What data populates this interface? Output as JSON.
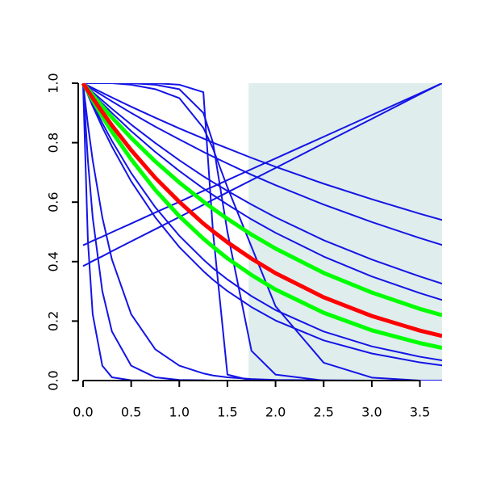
{
  "chart_data": {
    "type": "line",
    "x": [
      0,
      0.05,
      0.1,
      0.2,
      0.3,
      0.5,
      0.75,
      1.0,
      1.25,
      1.35,
      1.5,
      1.75,
      2.0,
      2.5,
      3.0,
      3.5,
      3.73
    ],
    "xlim": [
      -0.05,
      3.73
    ],
    "ylim": [
      0,
      1
    ],
    "xticks": [
      {
        "value": 0,
        "label": "0.0"
      },
      {
        "value": 0.5,
        "label": "0.5"
      },
      {
        "value": 1,
        "label": "1.0"
      },
      {
        "value": 1.5,
        "label": "1.5"
      },
      {
        "value": 2,
        "label": "2.0"
      },
      {
        "value": 2.5,
        "label": "2.5"
      },
      {
        "value": 3,
        "label": "3.0"
      },
      {
        "value": 3.5,
        "label": "3.5"
      }
    ],
    "yticks": [
      {
        "value": 0,
        "label": "0.0"
      },
      {
        "value": 0.2,
        "label": "0.2"
      },
      {
        "value": 0.4,
        "label": "0.4"
      },
      {
        "value": 0.6,
        "label": "0.6"
      },
      {
        "value": 0.8,
        "label": "0.8"
      },
      {
        "value": 1,
        "label": "1.0"
      }
    ],
    "shaded_xrange": [
      1.72,
      3.73
    ],
    "shade_color": "#dfeded",
    "series": [
      {
        "color": "#1414e6",
        "width": 2,
        "values": [
          1,
          0.992,
          0.984,
          0.968,
          0.952,
          0.921,
          0.884,
          0.848,
          0.814,
          0.8,
          0.781,
          0.749,
          0.719,
          0.662,
          0.61,
          0.561,
          0.54
        ]
      },
      {
        "color": "#1414e6",
        "width": 2,
        "values": [
          1,
          0.99,
          0.979,
          0.959,
          0.939,
          0.9,
          0.854,
          0.811,
          0.769,
          0.753,
          0.73,
          0.692,
          0.657,
          0.592,
          0.533,
          0.479,
          0.456
        ]
      },
      {
        "color": "#1414e6",
        "width": 2,
        "values": [
          1,
          0.985,
          0.97,
          0.942,
          0.914,
          0.861,
          0.799,
          0.741,
          0.687,
          0.667,
          0.638,
          0.592,
          0.549,
          0.472,
          0.407,
          0.35,
          0.326
        ]
      },
      {
        "color": "#1414e6",
        "width": 2,
        "values": [
          1,
          0.983,
          0.966,
          0.932,
          0.9,
          0.839,
          0.769,
          0.705,
          0.646,
          0.624,
          0.592,
          0.542,
          0.497,
          0.417,
          0.35,
          0.294,
          0.271
        ]
      },
      {
        "color": "#1414e6",
        "width": 2,
        "values": [
          1,
          0.965,
          0.93,
          0.866,
          0.806,
          0.698,
          0.583,
          0.487,
          0.407,
          0.378,
          0.34,
          0.284,
          0.237,
          0.165,
          0.115,
          0.08,
          0.068
        ]
      },
      {
        "color": "#1414e6",
        "width": 2,
        "values": [
          1,
          0.961,
          0.923,
          0.852,
          0.787,
          0.67,
          0.549,
          0.449,
          0.368,
          0.339,
          0.301,
          0.247,
          0.202,
          0.135,
          0.091,
          0.061,
          0.051
        ]
      },
      {
        "color": "#1414e6",
        "width": 2,
        "values": [
          1,
          0.861,
          0.741,
          0.549,
          0.407,
          0.223,
          0.105,
          0.05,
          0.024,
          0.017,
          0.011,
          0.005,
          0.002,
          0.001,
          0,
          0,
          0
        ]
      },
      {
        "color": "#1414e6",
        "width": 2,
        "values": [
          1,
          0.741,
          0.549,
          0.301,
          0.165,
          0.05,
          0.011,
          0.002,
          0.001,
          0,
          0,
          0,
          0,
          0,
          0,
          0,
          0
        ]
      },
      {
        "color": "#1414e6",
        "width": 2,
        "values": [
          1,
          0.472,
          0.223,
          0.05,
          0.011,
          0.001,
          0,
          0,
          0,
          0,
          0,
          0,
          0,
          0,
          0,
          0,
          0
        ]
      },
      {
        "color": "#1414e6",
        "width": 2,
        "values": [
          1,
          1,
          1,
          1,
          1,
          1,
          1,
          0.995,
          0.97,
          0.5,
          0.02,
          0,
          0,
          0,
          0,
          0,
          0
        ]
      },
      {
        "color": "#1414e6",
        "width": 2,
        "values": [
          1,
          1,
          1,
          1,
          1,
          1,
          0.995,
          0.98,
          0.9,
          0.8,
          0.5,
          0.1,
          0.02,
          0,
          0,
          0,
          0
        ]
      },
      {
        "color": "#1414e6",
        "width": 2,
        "values": [
          1,
          1,
          1,
          1,
          1,
          0.995,
          0.98,
          0.95,
          0.85,
          0.78,
          0.65,
          0.45,
          0.25,
          0.06,
          0.01,
          0,
          0
        ]
      },
      {
        "color": "#1414e6",
        "width": 2,
        "values": [
          0.385,
          0.393,
          0.402,
          0.418,
          0.435,
          0.468,
          0.509,
          0.55,
          0.591,
          0.608,
          0.633,
          0.674,
          0.715,
          0.798,
          0.88,
          0.963,
          1
        ]
      },
      {
        "color": "#1414e6",
        "width": 2,
        "values": [
          0.455,
          0.462,
          0.47,
          0.484,
          0.499,
          0.528,
          0.565,
          0.601,
          0.638,
          0.652,
          0.674,
          0.711,
          0.747,
          0.82,
          0.893,
          0.966,
          1
        ]
      },
      {
        "color": "#00ff00",
        "width": 5,
        "values": [
          1,
          0.98,
          0.96,
          0.922,
          0.885,
          0.816,
          0.737,
          0.666,
          0.602,
          0.578,
          0.544,
          0.491,
          0.444,
          0.362,
          0.296,
          0.241,
          0.22
        ]
      },
      {
        "color": "#00ff00",
        "width": 5,
        "values": [
          1,
          0.971,
          0.943,
          0.888,
          0.837,
          0.744,
          0.641,
          0.553,
          0.477,
          0.45,
          0.411,
          0.355,
          0.306,
          0.228,
          0.169,
          0.126,
          0.11
        ]
      },
      {
        "color": "#ff0000",
        "width": 5,
        "values": [
          1,
          0.975,
          0.95,
          0.903,
          0.858,
          0.775,
          0.682,
          0.601,
          0.528,
          0.502,
          0.465,
          0.41,
          0.361,
          0.28,
          0.217,
          0.168,
          0.15
        ]
      }
    ]
  }
}
